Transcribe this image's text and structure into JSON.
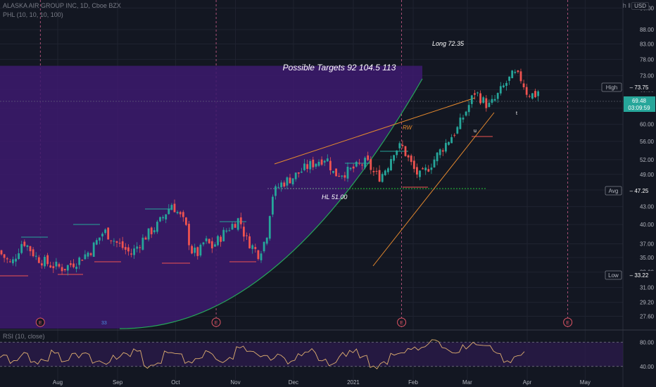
{
  "header": {
    "symbol_line": "ALASKA AIR GROUP INC, 1D, Cboe BZX",
    "indicator_line": "PHL (10, 10, 10, 100)",
    "currency": "USD",
    "tool_icons": "h ‖"
  },
  "rsi": {
    "label": "RSI (10, close)"
  },
  "annotations": {
    "targets": "Possible Targets  92  104.5  113",
    "long": "Long 72.35",
    "hl": "HL  51.00",
    "rw": "RW",
    "count": "33"
  },
  "earnings_marker": "E",
  "colors": {
    "background": "#131722",
    "up": "#26a69a",
    "down": "#ef5350",
    "purple_zone": "#3d1a6e",
    "curve": "#26a65a",
    "channel": "#e68a2e",
    "last_price_bg": "#26a69a"
  },
  "chart_data": {
    "type": "candlestick",
    "y_axis_scale": "log",
    "ylim": [
      26.5,
      102
    ],
    "y_ticks": [
      "96.00",
      "88.00",
      "83.00",
      "78.00",
      "73.00",
      "69.00",
      "64.00",
      "60.00",
      "56.00",
      "52.00",
      "49.00",
      "46.00",
      "43.00",
      "40.00",
      "37.00",
      "35.00",
      "33.00",
      "31.00",
      "29.20",
      "27.60"
    ],
    "x_ticks": [
      "Aug",
      "Sep",
      "Oct",
      "Nov",
      "Dec",
      "2021",
      "Feb",
      "Mar",
      "Apr",
      "May"
    ],
    "price_labels": {
      "high": {
        "label": "High",
        "value": "73.75"
      },
      "last": {
        "value": "69.48",
        "countdown": "03:09:59"
      },
      "avg": {
        "label": "Avg",
        "value": "47.25"
      },
      "low": {
        "label": "Low",
        "value": "33.22"
      }
    },
    "earnings_dates": [
      "Jul 23 2020",
      "Oct 22 2020",
      "Jan 26 2021",
      "Apr 22 2021"
    ],
    "close_path": [
      [
        "Jul 1",
        36
      ],
      [
        "Jul 8",
        34
      ],
      [
        "Jul 14",
        37.5
      ],
      [
        "Jul 21",
        35
      ],
      [
        "Jul 28",
        34
      ],
      [
        "Aug 4",
        33.5
      ],
      [
        "Aug 11",
        34.5
      ],
      [
        "Aug 18",
        36
      ],
      [
        "Aug 25",
        39
      ],
      [
        "Sep 1",
        37
      ],
      [
        "Sep 8",
        35.5
      ],
      [
        "Sep 15",
        38
      ],
      [
        "Sep 22",
        40
      ],
      [
        "Sep 29",
        43.5
      ],
      [
        "Oct 6",
        40
      ],
      [
        "Oct 9",
        36
      ],
      [
        "Oct 13",
        35.5
      ],
      [
        "Oct 16",
        37.5
      ],
      [
        "Oct 20",
        36.5
      ],
      [
        "Oct 27",
        39
      ],
      [
        "Nov 3",
        41
      ],
      [
        "Nov 6",
        38
      ],
      [
        "Nov 10",
        36.5
      ],
      [
        "Nov 13",
        35.5
      ],
      [
        "Nov 17",
        38
      ],
      [
        "Nov 20",
        45
      ],
      [
        "Nov 24",
        47
      ],
      [
        "Dec 1",
        48.5
      ],
      [
        "Dec 8",
        50.5
      ],
      [
        "Dec 15",
        52
      ],
      [
        "Dec 18",
        52.5
      ],
      [
        "Dec 22",
        49
      ],
      [
        "Dec 29",
        49.5
      ],
      [
        "Jan 5",
        51
      ],
      [
        "Jan 8",
        51.5
      ],
      [
        "Jan 12",
        49
      ],
      [
        "Jan 15",
        48.5
      ],
      [
        "Jan 19",
        51
      ],
      [
        "Jan 22",
        54
      ],
      [
        "Jan 26",
        55
      ],
      [
        "Jan 29",
        52.5
      ],
      [
        "Feb 2",
        49.5
      ],
      [
        "Feb 5",
        48.5
      ],
      [
        "Feb 10",
        51
      ],
      [
        "Feb 17",
        55
      ],
      [
        "Feb 24",
        59
      ],
      [
        "Mar 2",
        65
      ],
      [
        "Mar 5",
        68.5
      ],
      [
        "Mar 9",
        66
      ],
      [
        "Mar 12",
        64.5
      ],
      [
        "Mar 15",
        66
      ],
      [
        "Mar 18",
        68.5
      ],
      [
        "Mar 22",
        71.5
      ],
      [
        "Mar 25",
        73.5
      ],
      [
        "Mar 29",
        72
      ],
      [
        "Apr 1",
        68
      ],
      [
        "Apr 5",
        67.5
      ],
      [
        "Apr 8",
        69.48
      ]
    ],
    "rsi_levels": [
      80,
      40
    ],
    "rsi_path": [
      55,
      48,
      60,
      45,
      52,
      64,
      50,
      58,
      62,
      48,
      46,
      55,
      60,
      68,
      40,
      42,
      66,
      58,
      46,
      55,
      63,
      50,
      52,
      70,
      62,
      58,
      54,
      57,
      48,
      60,
      66,
      52,
      45,
      60,
      65,
      55,
      38,
      44,
      58,
      66,
      70,
      75,
      82,
      68,
      60,
      72,
      78,
      74,
      62,
      50,
      55,
      62
    ]
  }
}
